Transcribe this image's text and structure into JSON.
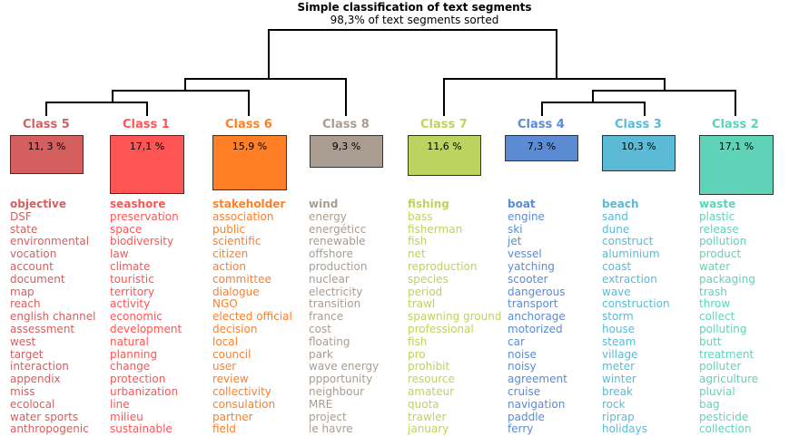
{
  "title": "Simple classification of text segments",
  "subtitle": "98,3% of text segments sorted",
  "classes": [
    {
      "label": "Class 5",
      "percent": "11, 3 %",
      "color": "#d45f5f",
      "words": [
        "objective",
        "DSF",
        "state",
        "environmental",
        "vocation",
        "account",
        "document",
        "map",
        "reach",
        "english channel",
        "assessment",
        "west",
        "target",
        "interaction",
        "appendix",
        "miss",
        "ecolocal",
        "water sports",
        "anthropogenic"
      ]
    },
    {
      "label": "Class 1",
      "percent": "17,1 %",
      "color": "#ff5454",
      "words": [
        "seashore",
        "preservation",
        "space",
        "biodiversity",
        "law",
        "climate",
        "touristic",
        "territory",
        "activity",
        "economic",
        "development",
        "natural",
        "planning",
        "change",
        "protection",
        "urbanization",
        "line",
        "milieu",
        "sustainable"
      ]
    },
    {
      "label": "Class 6",
      "percent": "15,9 %",
      "color": "#ff7f27",
      "words": [
        "stakeholder",
        "association",
        "public",
        "scientific",
        "citizen",
        "action",
        "committee",
        "dialogue",
        "NGO",
        "elected official",
        "decision",
        "local",
        "council",
        "user",
        "review",
        "collectivity",
        "consulation",
        "partner",
        "field"
      ]
    },
    {
      "label": "Class 8",
      "percent": "9,3 %",
      "color": "#a99d91",
      "words": [
        "wind",
        "energy",
        "energéticc",
        "renewable",
        "offshore",
        "production",
        "nuclear",
        "electricity",
        "transition",
        "france",
        "cost",
        "floating",
        "park",
        "wave energy",
        "ppportunity",
        "neighbour",
        "MRE",
        "project",
        "le havre"
      ]
    },
    {
      "label": "Class 7",
      "percent": "11,6 %",
      "color": "#bcd35f",
      "words": [
        "fishing",
        "bass",
        "fisherman",
        "fish",
        "net",
        "reproduction",
        "species",
        "period",
        "trawl",
        "spawning ground",
        "professional",
        "fish",
        "pro",
        "prohibit",
        "resource",
        "amateur",
        "quota",
        "trawler",
        "january"
      ]
    },
    {
      "label": "Class 4",
      "percent": "7,3 %",
      "color": "#5b8bd3",
      "words": [
        "boat",
        "engine",
        "ski",
        "jet",
        "vessel",
        "yatching",
        "scooter",
        "dangerous",
        "transport",
        "anchorage",
        "motorized",
        "car",
        "noise",
        "noisy",
        "agreement",
        "cruise",
        "navigation",
        "paddle",
        "ferry"
      ]
    },
    {
      "label": "Class 3",
      "percent": "10,3 %",
      "color": "#5bbad5",
      "words": [
        "beach",
        "sand",
        "dune",
        "construct",
        "aluminium",
        "coast",
        "extraction",
        "wave",
        "construction",
        "storm",
        "house",
        "steam",
        "village",
        "meter",
        "winter",
        "break",
        "rock",
        "riprap",
        "holidays"
      ]
    },
    {
      "label": "Class 2",
      "percent": "17,1 %",
      "color": "#5fd3b8",
      "words": [
        "waste",
        "plastic",
        "release",
        "pollution",
        "product",
        "water",
        "packaging",
        "trash",
        "throw",
        "collect",
        "polluting",
        "butt",
        "treatment",
        "polluter",
        "agriculture",
        "pluvial",
        "bag",
        "pesticide",
        "collection"
      ]
    }
  ]
}
